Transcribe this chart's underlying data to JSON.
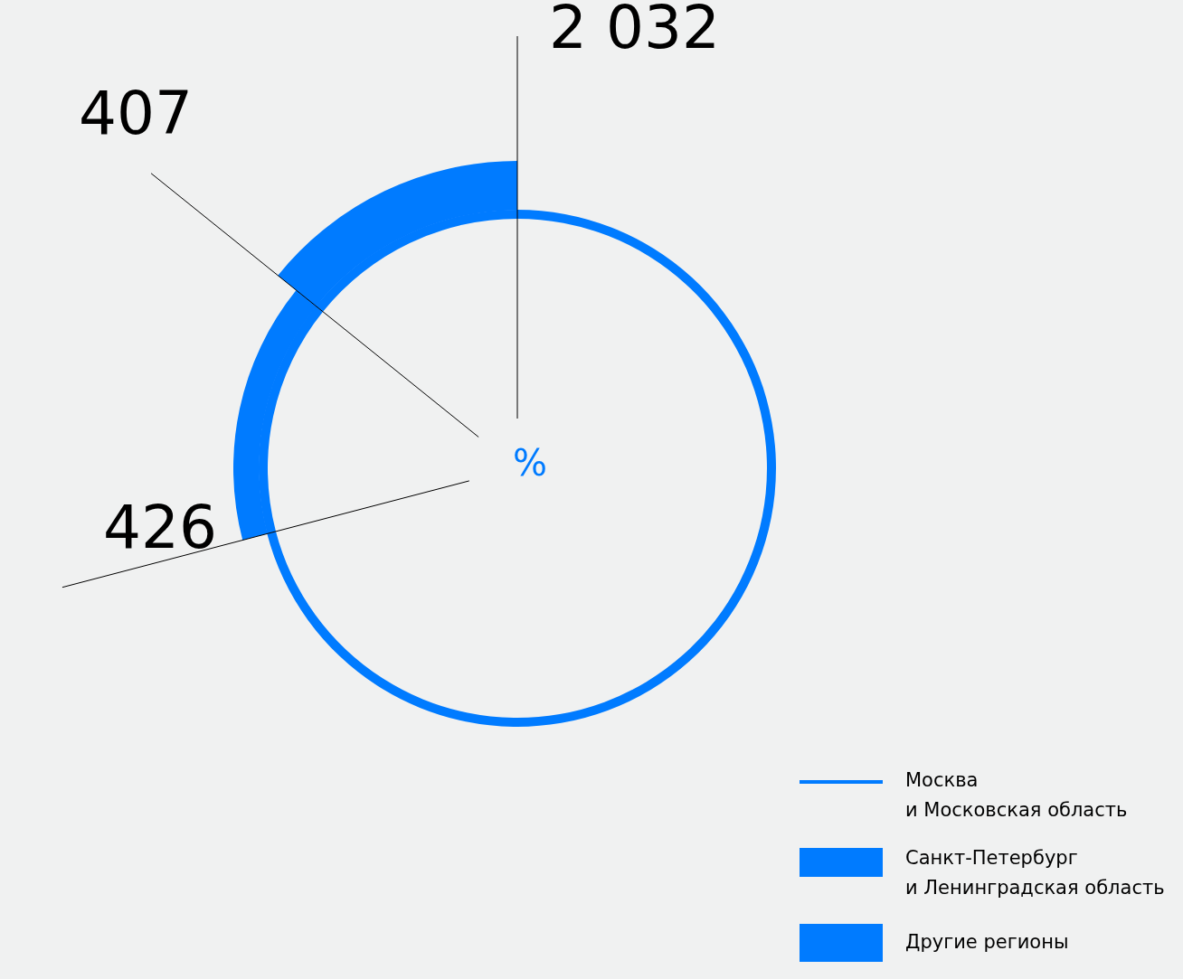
{
  "chart_data": {
    "type": "donut",
    "categories": [
      "Москва и Московская область",
      "Санкт-Петербург и Ленинградская область",
      "Другие регионы"
    ],
    "values": [
      2032,
      426,
      407
    ],
    "colors": [
      "#007bff",
      "#007bff",
      "#007bff"
    ],
    "data_labels": true,
    "legend": "bottom right",
    "annotations": [
      "%"
    ]
  }
}
